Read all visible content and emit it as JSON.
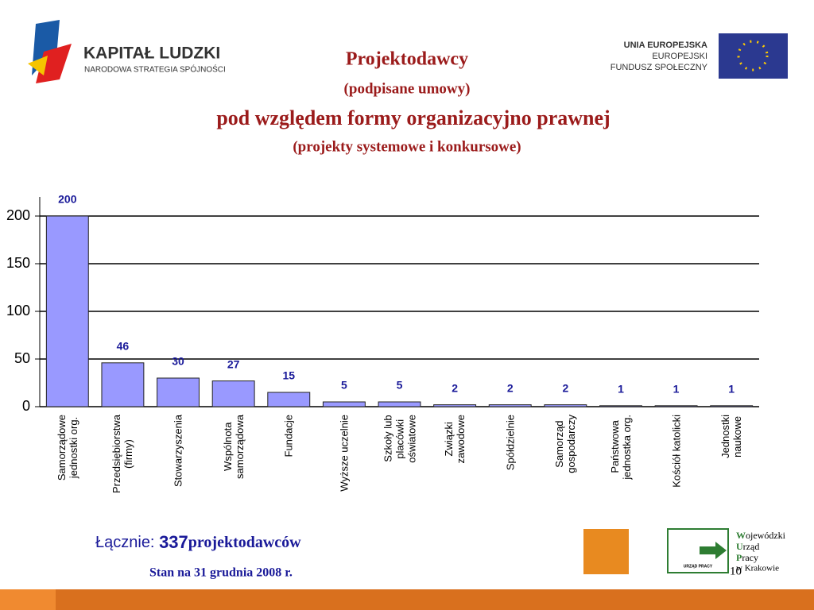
{
  "header": {
    "left_title": "KAPITAŁ LUDZKI",
    "left_subtitle": "NARODOWA STRATEGIA SPÓJNOŚCI",
    "right_lines": [
      "UNIA EUROPEJSKA",
      "EUROPEJSKI",
      "FUNDUSZ SPOŁECZNY"
    ]
  },
  "chart_data": {
    "type": "bar",
    "title": [
      "Projektodawcy",
      "(podpisane umowy)",
      "pod względem formy organizacyjno prawnej",
      "(projekty systemowe i konkursowe)"
    ],
    "categories": [
      "Samorządowe\njednostki org.",
      "Przedsiębiorstwa\n(firmy)",
      "Stowarzyszenia",
      "Wspólnota\nsamorządowa",
      "Fundacje",
      "Wyższe uczelnie",
      "Szkoły lub\nplacówki\noświatowe",
      "Związki\nzawodowe",
      "Spółdzielnie",
      "Samorząd\ngospodarczy",
      "Państwowa\njednostka org.",
      "Kościół katolicki",
      "Jednostki\nnaukowe"
    ],
    "values": [
      200,
      46,
      30,
      27,
      15,
      5,
      5,
      2,
      2,
      2,
      1,
      1,
      1
    ],
    "color": "#9999ff",
    "label_color": "#1a1a99",
    "ylim": [
      0,
      220
    ],
    "yticks": [
      0,
      50,
      100,
      150,
      200
    ],
    "grid": true
  },
  "footer": {
    "total_label": "Łącznie:",
    "total": 337,
    "total_unit": "projektodawców",
    "date": "Stan na 31 grudnia 2008 r.",
    "page": "10",
    "office": [
      "W",
      "ojewódzki",
      "U",
      "rząd",
      "P",
      "racy",
      "w Krakowie"
    ],
    "office_small": "URZĄD PRACY"
  }
}
